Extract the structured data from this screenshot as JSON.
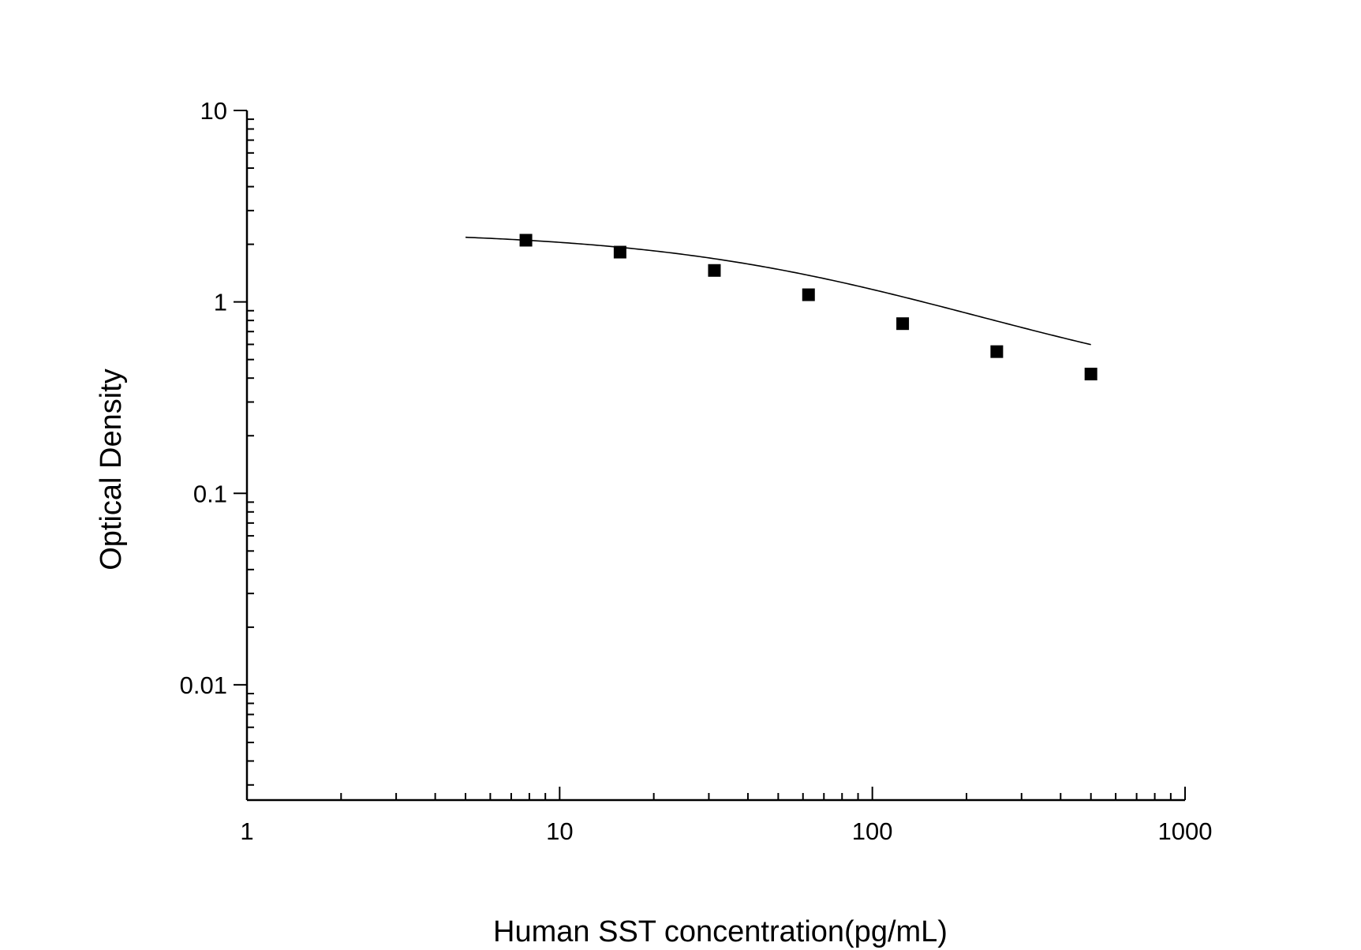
{
  "chart_data": {
    "type": "scatter",
    "xlabel": "Human SST concentration(pg/mL)",
    "ylabel": "Optical Density",
    "x_scale": "log",
    "y_scale": "log",
    "xlim": [
      1,
      1000
    ],
    "ylim": [
      0.0025,
      10
    ],
    "x_ticks": [
      {
        "value": 1,
        "label": "1"
      },
      {
        "value": 10,
        "label": "10"
      },
      {
        "value": 100,
        "label": "100"
      },
      {
        "value": 1000,
        "label": "1000"
      }
    ],
    "y_ticks": [
      {
        "value": 10,
        "label": "10"
      },
      {
        "value": 1,
        "label": "1"
      },
      {
        "value": 0.1,
        "label": "0.1"
      },
      {
        "value": 0.01,
        "label": "0.01"
      }
    ],
    "grid": false,
    "legend": "none",
    "series": [
      {
        "marker": "square",
        "color": "#000000",
        "points": [
          {
            "x": 7.8,
            "y": 2.1
          },
          {
            "x": 15.6,
            "y": 1.82
          },
          {
            "x": 31.25,
            "y": 1.46
          },
          {
            "x": 62.5,
            "y": 1.09
          },
          {
            "x": 125,
            "y": 0.77
          },
          {
            "x": 250,
            "y": 0.55
          },
          {
            "x": 500,
            "y": 0.42
          }
        ]
      }
    ],
    "fit_curve": {
      "type": "four-parameter logistic",
      "color": "#000000",
      "x_range": [
        5,
        500
      ],
      "params": {
        "A": 2.35,
        "D": 0.3,
        "C": 70,
        "B": 0.9
      }
    }
  }
}
